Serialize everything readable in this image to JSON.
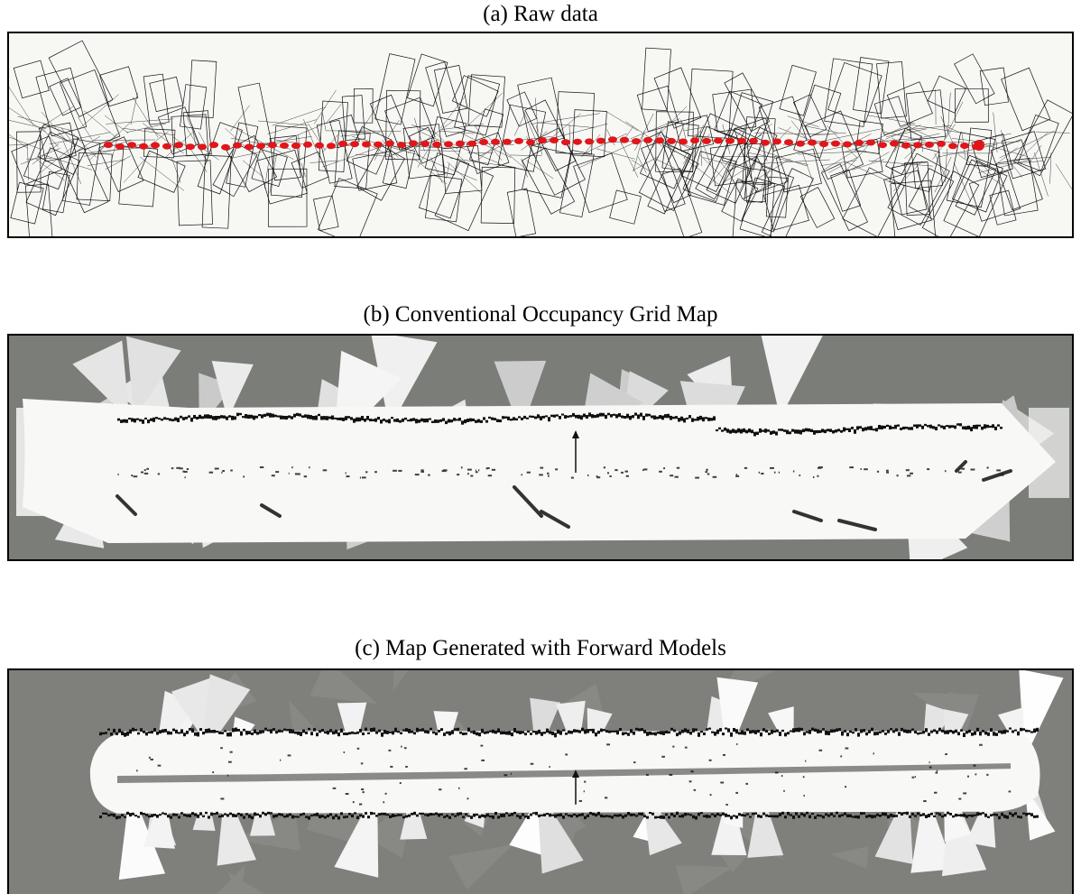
{
  "figure": {
    "panels": [
      {
        "caption": "(a) Raw data"
      },
      {
        "caption": "(b) Conventional Occupancy Grid Map"
      },
      {
        "caption": "(c) Map Generated with Forward Models"
      }
    ]
  },
  "colors": {
    "scan_lines": "#111111",
    "robot_path": "#e0161a",
    "raw_background": "#f7f8f4",
    "unknown_gray_b": "#7b7d79",
    "unknown_gray_c": "#7f807c",
    "free_space": "#f8f8f6",
    "occupied": "#111111"
  }
}
